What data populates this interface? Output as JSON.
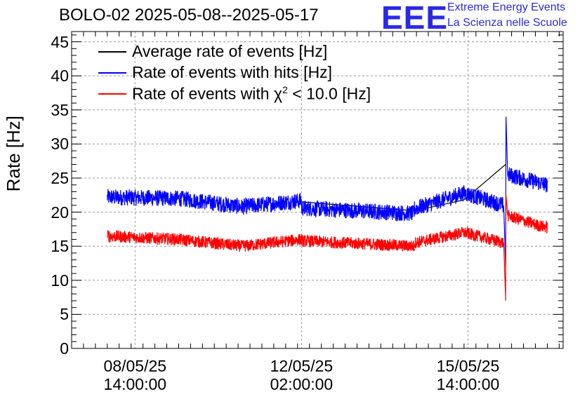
{
  "chart_data": {
    "type": "line",
    "title": "BOLO-02 2025-05-08--2025-05-17",
    "ylabel": "Rate [Hz]",
    "xlabel": "",
    "ylim": [
      0,
      46.5
    ],
    "yticks": [
      0,
      5,
      10,
      15,
      20,
      25,
      30,
      35,
      40,
      45
    ],
    "x_axis_type": "datetime",
    "xlim": [
      "2025-05-07 06:00",
      "2025-05-17 14:00"
    ],
    "xtick_labels": [
      {
        "date": "08/05/25",
        "time": "14:00:00",
        "x": "2025-05-08 14:00"
      },
      {
        "date": "12/05/25",
        "time": "02:00:00",
        "x": "2025-05-12 02:00"
      },
      {
        "date": "15/05/25",
        "time": "14:00:00",
        "x": "2025-05-15 14:00"
      }
    ],
    "grid": true,
    "legend_position": "top-left",
    "series": [
      {
        "name": "Average rate of events [Hz]",
        "color": "#000000",
        "noise": 0,
        "segments": [
          [
            [
              "2025-05-12 02:00",
              21.5
            ],
            [
              "2025-05-14 11:00",
              20.2
            ],
            [
              "2025-05-15 12:00",
              21.8
            ],
            [
              "2025-05-16 09:00",
              27.0
            ]
          ]
        ]
      },
      {
        "name": "Rate of events with hits [Hz]",
        "color": "#0000ff",
        "noise": 1.2,
        "segments": [
          [
            [
              "2025-05-08 00:00",
              22.2
            ],
            [
              "2025-05-09 12:00",
              22.0
            ],
            [
              "2025-05-10 20:00",
              20.8
            ],
            [
              "2025-05-12 02:00",
              21.7
            ]
          ],
          [
            [
              "2025-05-12 02:00",
              20.6
            ],
            [
              "2025-05-14 11:00",
              19.8
            ]
          ],
          [
            [
              "2025-05-14 11:00",
              20.5
            ],
            [
              "2025-05-15 12:00",
              22.8
            ],
            [
              "2025-05-16 08:00",
              21.0
            ],
            [
              "2025-05-16 09:00",
              12.0
            ],
            [
              "2025-05-16 09:10",
              34.0
            ],
            [
              "2025-05-16 10:00",
              25.5
            ],
            [
              "2025-05-17 02:00",
              24.3
            ],
            [
              "2025-05-17 06:00",
              24.0
            ]
          ]
        ]
      },
      {
        "name": "Rate of events with χ2 < 10.0 [Hz]",
        "color": "#ff0000",
        "noise": 0.9,
        "segments": [
          [
            [
              "2025-05-08 00:00",
              16.5
            ],
            [
              "2025-05-09 12:00",
              16.0
            ],
            [
              "2025-05-10 20:00",
              15.0
            ],
            [
              "2025-05-12 02:00",
              16.0
            ]
          ],
          [
            [
              "2025-05-12 02:00",
              15.8
            ],
            [
              "2025-05-14 11:00",
              15.0
            ]
          ],
          [
            [
              "2025-05-14 11:00",
              15.5
            ],
            [
              "2025-05-15 12:00",
              17.0
            ],
            [
              "2025-05-16 08:00",
              15.5
            ],
            [
              "2025-05-16 09:00",
              7.0
            ],
            [
              "2025-05-16 09:10",
              22.5
            ],
            [
              "2025-05-16 10:00",
              19.5
            ],
            [
              "2025-05-17 02:00",
              18.0
            ],
            [
              "2025-05-17 06:00",
              17.8
            ]
          ]
        ]
      }
    ]
  },
  "legend": {
    "avg": "Average rate of events [Hz]",
    "hits": "Rate of events with hits [Hz]",
    "chi_prefix": "Rate of events with χ",
    "chi_sup": "2",
    "chi_suffix": " < 10.0 [Hz]"
  },
  "logo": {
    "mark": "EEE",
    "line1": "Extreme Energy Events",
    "line2": "La Scienza nelle Scuole"
  }
}
